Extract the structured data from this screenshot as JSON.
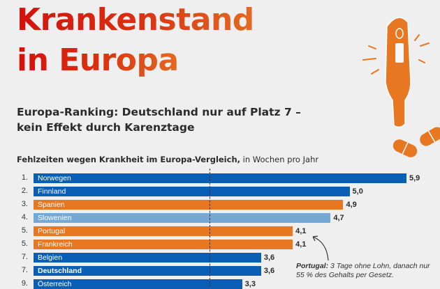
{
  "header": {
    "title_line1": "Krankenstand",
    "title_line2": "in Europa",
    "subtitle": "Europa-Ranking: Deutschland nur auf Platz 7 – kein Effekt durch Karenztage"
  },
  "illustration": {
    "icon": "thermometer-with-pills",
    "color": "#e87722"
  },
  "annotation": {
    "bold": "Portugal:",
    "text": " 3 Tage ohne Lohn, danach nur 55 % des Gehalts per Gesetz."
  },
  "chart_data": {
    "type": "bar",
    "orientation": "horizontal",
    "title": "Fehlzeiten wegen Krankheit im Europa-Vergleich,",
    "unit": "in Wochen pro Jahr",
    "xlabel": "",
    "ylabel": "",
    "xlim": [
      0,
      6.0
    ],
    "reference_line": 3.0,
    "colors": {
      "dark_blue": "#0a5fb4",
      "orange": "#e87722",
      "light_blue": "#74a9d6"
    },
    "rows": [
      {
        "rank": "1.",
        "country": "Norwegen",
        "value": 5.9,
        "label": "5,9",
        "color": "dark_blue",
        "bold": false
      },
      {
        "rank": "2.",
        "country": "Finnland",
        "value": 5.0,
        "label": "5,0",
        "color": "dark_blue",
        "bold": false
      },
      {
        "rank": "3.",
        "country": "Spanien",
        "value": 4.9,
        "label": "4,9",
        "color": "orange",
        "bold": false
      },
      {
        "rank": "4.",
        "country": "Slowenien",
        "value": 4.7,
        "label": "4,7",
        "color": "light_blue",
        "bold": false
      },
      {
        "rank": "5.",
        "country": "Portugal",
        "value": 4.1,
        "label": "4,1",
        "color": "orange",
        "bold": false
      },
      {
        "rank": "5.",
        "country": "Frankreich",
        "value": 4.1,
        "label": "4,1",
        "color": "orange",
        "bold": false
      },
      {
        "rank": "7.",
        "country": "Belgien",
        "value": 3.6,
        "label": "3,6",
        "color": "dark_blue",
        "bold": false
      },
      {
        "rank": "7.",
        "country": "Deutschland",
        "value": 3.6,
        "label": "3,6",
        "color": "dark_blue",
        "bold": true
      },
      {
        "rank": "9.",
        "country": "Österreich",
        "value": 3.3,
        "label": "3,3",
        "color": "dark_blue",
        "bold": false
      }
    ]
  }
}
